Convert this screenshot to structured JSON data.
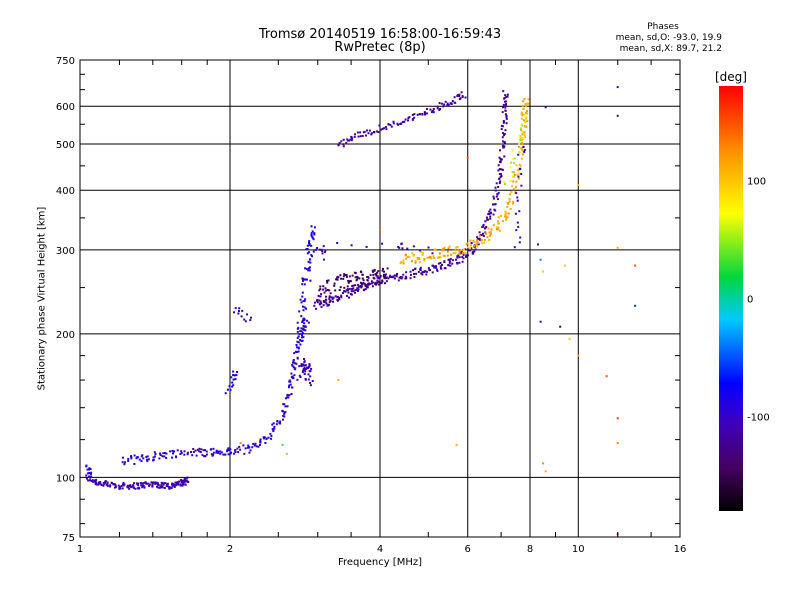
{
  "title_line1": "Tromsø 20140519 16:58:00-16:59:43",
  "title_line2": "RwPretec (8p)",
  "phase_box": {
    "heading": "Phases",
    "line_o": "mean, sd,O: -93.0, 19.9",
    "line_x": "mean, sd,X:  89.7, 21.2"
  },
  "colorbar": {
    "label": "[deg]",
    "ticks": [
      {
        "value": 100,
        "label": "100"
      },
      {
        "value": 0,
        "label": "0"
      },
      {
        "value": -100,
        "label": "-100"
      }
    ],
    "range": [
      -180,
      180
    ]
  },
  "chart_data": {
    "type": "scatter",
    "title": "Tromsø 20140519 16:58:00-16:59:43",
    "subtitle": "RwPretec (8p)",
    "xlabel": "Frequency [MHz]",
    "ylabel": "Stationary phase Virtual Height [km]",
    "x_scale": "log",
    "y_scale": "log",
    "xlim": [
      1,
      16
    ],
    "ylim": [
      75,
      750
    ],
    "x_ticks": [
      1,
      2,
      4,
      6,
      8,
      10,
      16
    ],
    "y_ticks": [
      75,
      100,
      200,
      300,
      400,
      500,
      600,
      750
    ],
    "x_grid": [
      2,
      4,
      6,
      8,
      10
    ],
    "y_grid": [
      100,
      200,
      300,
      400,
      500,
      600
    ],
    "grid": true,
    "colorbar_variable": "phase [deg]",
    "traces": [
      {
        "points": [
          [
            1.03,
            100
          ],
          [
            1.1,
            97
          ],
          [
            1.2,
            96
          ],
          [
            1.3,
            96
          ],
          [
            1.4,
            97
          ],
          [
            1.5,
            96
          ],
          [
            1.6,
            97
          ],
          [
            1.64,
            99
          ]
        ],
        "phase": -110,
        "spread": 1.5,
        "n": 180
      },
      {
        "points": [
          [
            1.03,
            105
          ],
          [
            1.05,
            102
          ]
        ],
        "phase": -85,
        "spread": 1.5,
        "n": 10
      },
      {
        "points": [
          [
            1.22,
            108
          ],
          [
            1.35,
            110
          ],
          [
            1.5,
            112
          ],
          [
            1.7,
            113
          ],
          [
            1.85,
            113
          ],
          [
            2.0,
            113
          ],
          [
            2.2,
            115
          ],
          [
            2.4,
            122
          ],
          [
            2.55,
            135
          ],
          [
            2.65,
            155
          ],
          [
            2.7,
            175
          ],
          [
            2.78,
            200
          ],
          [
            2.85,
            215
          ]
        ],
        "phase": -95,
        "spread": 2.0,
        "n": 230
      },
      {
        "points": [
          [
            2.75,
            195
          ],
          [
            2.8,
            225
          ],
          [
            2.85,
            265
          ],
          [
            2.9,
            300
          ],
          [
            2.93,
            330
          ]
        ],
        "phase": -88,
        "spread": 3.0,
        "n": 70
      },
      {
        "points": [
          [
            2.78,
            165
          ],
          [
            2.85,
            175
          ],
          [
            2.88,
            160
          ]
        ],
        "phase": -105,
        "spread": 3.0,
        "n": 40
      },
      {
        "points": [
          [
            1.97,
            150
          ],
          [
            2.03,
            160
          ],
          [
            2.05,
            165
          ]
        ],
        "phase": -80,
        "spread": 2.0,
        "n": 15
      },
      {
        "points": [
          [
            2.05,
            225
          ],
          [
            2.2,
            215
          ]
        ],
        "phase": -95,
        "spread": 2.0,
        "n": 12
      },
      {
        "points": [
          [
            2.95,
            230
          ],
          [
            3.2,
            235
          ],
          [
            3.5,
            245
          ],
          [
            3.8,
            255
          ],
          [
            4.2,
            262
          ],
          [
            4.7,
            268
          ],
          [
            5.2,
            275
          ],
          [
            5.7,
            285
          ],
          [
            6.1,
            300
          ],
          [
            6.5,
            330
          ],
          [
            6.8,
            380
          ],
          [
            7.0,
            450
          ],
          [
            7.1,
            550
          ],
          [
            7.15,
            640
          ]
        ],
        "phase": -118,
        "spread": 2.0,
        "n": 320
      },
      {
        "points": [
          [
            3.0,
            240
          ],
          [
            3.3,
            255
          ],
          [
            3.6,
            260
          ],
          [
            3.9,
            262
          ],
          [
            4.1,
            265
          ]
        ],
        "phase": -140,
        "spread": 4.0,
        "n": 120
      },
      {
        "points": [
          [
            4.4,
            285
          ],
          [
            4.8,
            290
          ],
          [
            5.3,
            295
          ],
          [
            5.8,
            300
          ],
          [
            6.3,
            310
          ],
          [
            6.8,
            330
          ],
          [
            7.2,
            360
          ],
          [
            7.5,
            420
          ],
          [
            7.7,
            500
          ],
          [
            7.8,
            560
          ],
          [
            7.85,
            620
          ]
        ],
        "phase": 112,
        "spread": 2.5,
        "n": 200
      },
      {
        "points": [
          [
            3.3,
            495
          ],
          [
            3.6,
            520
          ],
          [
            4.0,
            540
          ],
          [
            4.5,
            560
          ],
          [
            5.0,
            585
          ],
          [
            5.5,
            610
          ],
          [
            5.9,
            635
          ]
        ],
        "phase": -115,
        "spread": 1.5,
        "n": 110
      },
      {
        "points": [
          [
            7.2,
            410
          ],
          [
            7.4,
            470
          ],
          [
            7.7,
            520
          ],
          [
            7.85,
            580
          ]
        ],
        "phase": 60,
        "spread": 3.0,
        "n": 25
      },
      {
        "points": [
          [
            7.5,
            300
          ],
          [
            7.6,
            400
          ],
          [
            7.7,
            500
          ]
        ],
        "phase": -100,
        "spread": 3.0,
        "n": 20
      },
      {
        "points": [
          [
            3.0,
            300
          ],
          [
            3.05,
            290
          ],
          [
            3.1,
            310
          ],
          [
            4.3,
            310
          ],
          [
            4.5,
            305
          ],
          [
            5.1,
            300
          ]
        ],
        "phase": -100,
        "spread": 2.0,
        "n": 24
      }
    ],
    "outliers": [
      {
        "x": 2.1,
        "y": 118,
        "phase": 130
      },
      {
        "x": 2.55,
        "y": 117,
        "phase": 30
      },
      {
        "x": 2.6,
        "y": 112,
        "phase": 45
      },
      {
        "x": 3.3,
        "y": 160,
        "phase": 110
      },
      {
        "x": 4.0,
        "y": 330,
        "phase": 140
      },
      {
        "x": 5.7,
        "y": 117,
        "phase": 110
      },
      {
        "x": 6.0,
        "y": 468,
        "phase": 150
      },
      {
        "x": 8.3,
        "y": 308,
        "phase": -120
      },
      {
        "x": 8.4,
        "y": 286,
        "phase": -40
      },
      {
        "x": 8.5,
        "y": 270,
        "phase": 100
      },
      {
        "x": 8.6,
        "y": 597,
        "phase": -100
      },
      {
        "x": 8.5,
        "y": 107,
        "phase": 130
      },
      {
        "x": 8.6,
        "y": 103,
        "phase": 110
      },
      {
        "x": 8.4,
        "y": 212,
        "phase": -120
      },
      {
        "x": 9.2,
        "y": 207,
        "phase": -150
      },
      {
        "x": 9.4,
        "y": 278,
        "phase": 100
      },
      {
        "x": 10.0,
        "y": 410,
        "phase": 110
      },
      {
        "x": 10.0,
        "y": 180,
        "phase": 110
      },
      {
        "x": 12.0,
        "y": 658,
        "phase": -120
      },
      {
        "x": 12.0,
        "y": 573,
        "phase": -120
      },
      {
        "x": 12.0,
        "y": 303,
        "phase": 110
      },
      {
        "x": 11.4,
        "y": 163,
        "phase": 150
      },
      {
        "x": 12.0,
        "y": 133,
        "phase": 160
      },
      {
        "x": 12.0,
        "y": 118,
        "phase": 130
      },
      {
        "x": 12.0,
        "y": 76,
        "phase": 170
      },
      {
        "x": 13.0,
        "y": 278,
        "phase": 150
      },
      {
        "x": 13.0,
        "y": 229,
        "phase": -60
      },
      {
        "x": 9.6,
        "y": 195,
        "phase": 100
      }
    ]
  }
}
